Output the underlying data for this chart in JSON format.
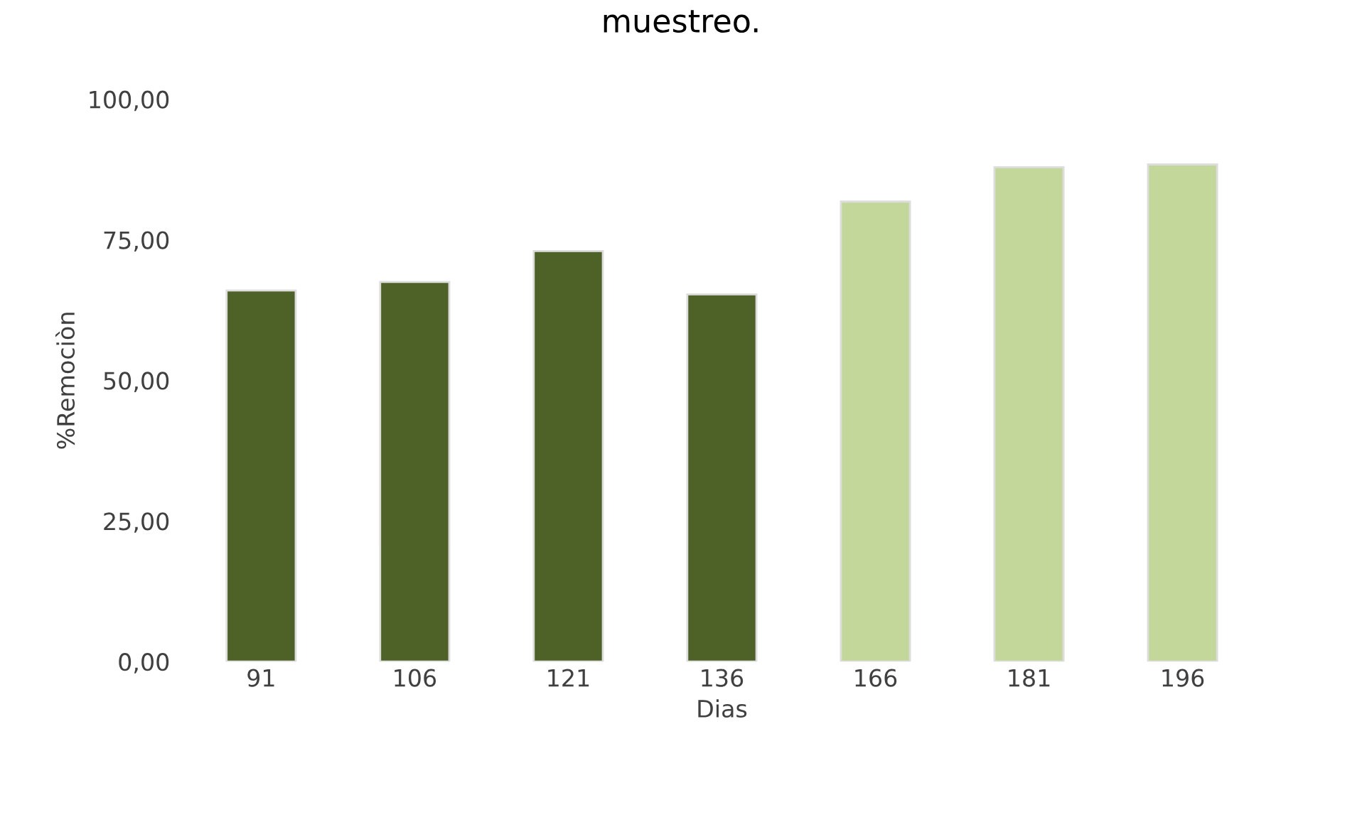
{
  "chart_data": {
    "type": "bar",
    "title": "muestreo.",
    "xlabel": "Dias",
    "ylabel": "%Remociòn",
    "categories": [
      "91",
      "106",
      "121",
      "136",
      "166",
      "181",
      "196"
    ],
    "values": [
      66.0,
      67.5,
      73.0,
      65.3,
      81.8,
      87.9,
      88.4
    ],
    "colors": [
      "#4e6228",
      "#4e6228",
      "#4e6228",
      "#4e6228",
      "#c4d79b",
      "#c4d79b",
      "#c4d79b"
    ],
    "ylim": [
      0,
      100
    ],
    "yticks": [
      {
        "value": 0,
        "label": "0,00"
      },
      {
        "value": 25,
        "label": "25,00"
      },
      {
        "value": 50,
        "label": "50,00"
      },
      {
        "value": 75,
        "label": "75,00"
      },
      {
        "value": 100,
        "label": "100,00"
      }
    ],
    "grid": false
  }
}
